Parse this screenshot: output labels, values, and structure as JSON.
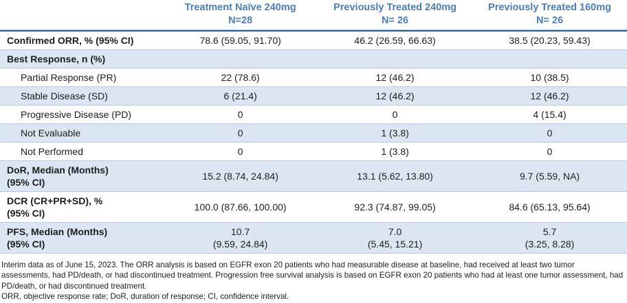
{
  "table": {
    "columns": [
      {
        "title": "Treatment Naïve 240mg",
        "n": "N=28"
      },
      {
        "title": "Previously Treated 240mg",
        "n": "N= 26"
      },
      {
        "title": "Previously Treated 160mg",
        "n": "N= 26"
      }
    ],
    "rows": [
      {
        "name": "confirmed-orr",
        "label": "Confirmed ORR, % (95% CI)",
        "indent": false,
        "values": [
          "78.6 (59.05, 91.70)",
          "46.2 (26.59, 66.63)",
          "38.5 (20.23, 59.43)"
        ]
      },
      {
        "name": "best-response-section",
        "label": "Best Response, n (%)",
        "indent": false,
        "values": [
          "",
          "",
          ""
        ]
      },
      {
        "name": "partial-response",
        "label": "Partial Response (PR)",
        "indent": true,
        "values": [
          "22 (78.6)",
          "12 (46.2)",
          "10 (38.5)"
        ]
      },
      {
        "name": "stable-disease",
        "label": "Stable Disease (SD)",
        "indent": true,
        "values": [
          "6 (21.4)",
          "12 (46.2)",
          "12 (46.2)"
        ]
      },
      {
        "name": "progressive-disease",
        "label": "Progressive Disease (PD)",
        "indent": true,
        "values": [
          "0",
          "0",
          "4 (15.4)"
        ]
      },
      {
        "name": "not-evaluable",
        "label": "Not Evaluable",
        "indent": true,
        "values": [
          "0",
          "1 (3.8)",
          "0"
        ]
      },
      {
        "name": "not-performed",
        "label": "Not Performed",
        "indent": true,
        "values": [
          "0",
          "1 (3.8)",
          "0"
        ]
      },
      {
        "name": "dor-median",
        "label": "DoR, Median (Months)\n(95% CI)",
        "indent": false,
        "values": [
          "15.2 (8.74, 24.84)",
          "13.1 (5.62, 13.80)",
          "9.7 (5.59, NA)"
        ]
      },
      {
        "name": "dcr",
        "label": "DCR (CR+PR+SD), %\n(95% CI)",
        "indent": false,
        "values": [
          "100.0 (87.66, 100.00)",
          "92.3 (74.87, 99.05)",
          "84.6 (65.13, 95.64)"
        ]
      },
      {
        "name": "pfs-median",
        "label": "PFS, Median (Months)\n(95% CI)",
        "indent": false,
        "values": [
          "10.7\n(9.59, 24.84)",
          "7.0\n(5.45, 15.21)",
          "5.7\n(3.25, 8.28)"
        ]
      }
    ]
  },
  "footnotes": {
    "interim": "Interim data as of June 15, 2023. The ORR analysis is based on EGFR exon 20 patients who had measurable disease at baseline, had received at least two tumor assessments, had PD/death, or had discontinued treatment. Progression free survival analysis is based on EGFR exon 20 patients who had at least one tumor assessment, had PD/death, or had discontinued treatment.",
    "abbreviations": "ORR, objective response rate; DoR, duration of response; CI, confidence interval."
  },
  "colors": {
    "header_text": "#4a7ebe",
    "shaded_row": "#dce6f2",
    "row_border": "#b7c9de",
    "header_rule_dark": "#2f5f93",
    "header_rule_light": "#a9c6e8"
  }
}
